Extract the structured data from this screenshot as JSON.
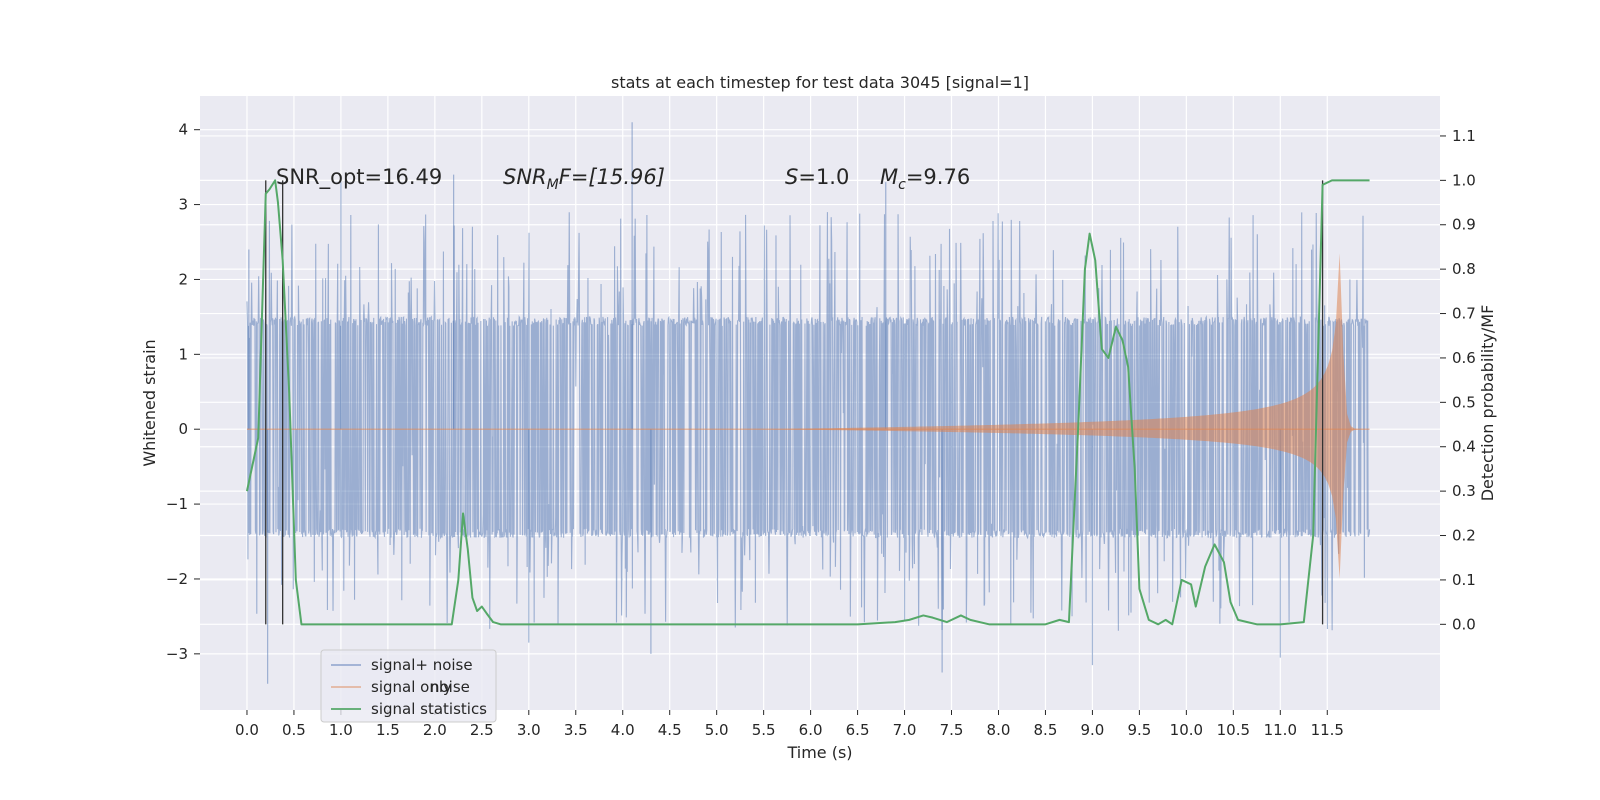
{
  "chart_data": {
    "type": "line",
    "title": "stats at each timestep for test data 3045 [signal=1]",
    "xlabel": "Time (s)",
    "ylabel_left": "Whitened strain",
    "ylabel_right": "Detection probability/MF",
    "xlim": [
      -0.5,
      12.7
    ],
    "ylim_left": [
      -3.75,
      4.45
    ],
    "ylim_right": [
      -0.193,
      1.19
    ],
    "x_ticks": [
      0.0,
      0.5,
      1.0,
      1.5,
      2.0,
      2.5,
      3.0,
      3.5,
      4.0,
      4.5,
      5.0,
      5.5,
      6.0,
      6.5,
      7.0,
      7.5,
      8.0,
      8.5,
      9.0,
      9.5,
      10.0,
      10.5,
      11.0,
      11.5
    ],
    "x_tick_labels": [
      "0.0",
      "0.5",
      "1.0",
      "1.5",
      "2.0",
      "2.5",
      "3.0",
      "3.5",
      "4.0",
      "4.5",
      "5.0",
      "5.5",
      "6.0",
      "6.5",
      "7.0",
      "7.5",
      "8.0",
      "8.5",
      "9.0",
      "9.5",
      "10.0",
      "10.5",
      "11.0",
      "11.5"
    ],
    "y_left_ticks": [
      4,
      3,
      2,
      1,
      0,
      -1,
      -2,
      -3
    ],
    "y_left_tick_labels": [
      "4",
      "3",
      "2",
      "1",
      "0",
      "−1",
      "−2",
      "−3"
    ],
    "y_right_ticks": [
      1.1,
      1.0,
      0.9,
      0.8,
      0.7,
      0.6,
      0.5,
      0.4,
      0.3,
      0.2,
      0.1,
      0.0
    ],
    "y_right_tick_labels": [
      "1.1",
      "1.0",
      "0.9",
      "0.8",
      "0.7",
      "0.6",
      "0.5",
      "0.4",
      "0.3",
      "0.2",
      "0.1",
      "0.0"
    ],
    "grid": true,
    "legend_position": "lower-left",
    "annotations": {
      "snr_opt": "SNR_opt=16.49",
      "snr_mf_label": "SNR",
      "snr_mf_sub": "M",
      "snr_mf_value": "F=[15.96]",
      "s_label": "S",
      "s_value": "=1.0",
      "mc_label": "M",
      "mc_sub": "c",
      "mc_value": "=9.76"
    },
    "series": [
      {
        "name": "signal+ noise",
        "color": "#4c72b0",
        "axis": "left",
        "description_values": {
          "t_start": 0.0,
          "t_end": 11.95,
          "typical_envelope": [
            -1.45,
            1.5
          ],
          "max": 4.1,
          "min": -3.4
        }
      },
      {
        "name": "signal only",
        "color": "#dd8452",
        "axis": "left",
        "chirp": {
          "t_start": 0.0,
          "t_merger": 11.65,
          "t_end": 11.95,
          "peak_amplitude": 2.35
        }
      },
      {
        "name": "signal statistics",
        "color": "#55a868",
        "axis": "right",
        "x": [
          0.0,
          0.12,
          0.2,
          0.24,
          0.3,
          0.33,
          0.38,
          0.45,
          0.52,
          0.58,
          0.63,
          1.0,
          2.0,
          2.18,
          2.25,
          2.3,
          2.35,
          2.4,
          2.45,
          2.5,
          2.55,
          2.62,
          2.7,
          2.78,
          2.9,
          3.0,
          4.0,
          5.0,
          6.0,
          6.5,
          6.9,
          7.05,
          7.2,
          7.3,
          7.45,
          7.6,
          7.7,
          7.9,
          8.5,
          8.65,
          8.75,
          8.85,
          8.92,
          8.97,
          9.03,
          9.1,
          9.17,
          9.25,
          9.32,
          9.38,
          9.45,
          9.5,
          9.6,
          9.7,
          9.78,
          9.85,
          9.95,
          10.05,
          10.1,
          10.2,
          10.3,
          10.4,
          10.47,
          10.55,
          10.65,
          10.75,
          10.9,
          11.0,
          11.25,
          11.35,
          11.45,
          11.55,
          11.62,
          11.7,
          11.95
        ],
        "y": [
          0.3,
          0.42,
          0.97,
          0.98,
          1.0,
          0.95,
          0.82,
          0.52,
          0.1,
          0.0,
          0.0,
          0.0,
          0.0,
          0.0,
          0.1,
          0.25,
          0.17,
          0.06,
          0.03,
          0.04,
          0.025,
          0.005,
          0.0,
          0.0,
          0.0,
          0.0,
          0.0,
          0.0,
          0.0,
          0.0,
          0.005,
          0.01,
          0.02,
          0.015,
          0.005,
          0.02,
          0.01,
          0.0,
          0.0,
          0.01,
          0.005,
          0.45,
          0.8,
          0.88,
          0.82,
          0.62,
          0.6,
          0.67,
          0.64,
          0.58,
          0.35,
          0.08,
          0.01,
          0.0,
          0.01,
          0.0,
          0.1,
          0.09,
          0.04,
          0.13,
          0.18,
          0.14,
          0.05,
          0.01,
          0.005,
          0.0,
          0.0,
          0.0,
          0.005,
          0.2,
          0.99,
          1.0,
          1.0,
          1.0,
          1.0
        ]
      }
    ],
    "vertical_markers": [
      0.2,
      0.38,
      11.45
    ]
  },
  "legend": {
    "items": [
      {
        "label": "signal+ noise",
        "color": "#8da2cc"
      },
      {
        "label": "signal only",
        "color": "#dd8452"
      },
      {
        "label": "signal statistics",
        "color": "#55a868"
      }
    ],
    "ghost_text": "noise"
  }
}
